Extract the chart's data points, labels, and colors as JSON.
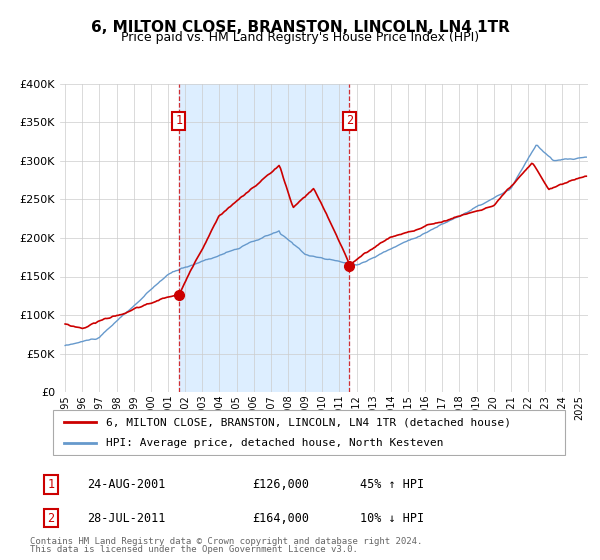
{
  "title": "6, MILTON CLOSE, BRANSTON, LINCOLN, LN4 1TR",
  "subtitle": "Price paid vs. HM Land Registry's House Price Index (HPI)",
  "sale1_label": "24-AUG-2001",
  "sale1_price": 126000,
  "sale1_price_str": "£126,000",
  "sale1_pct": "45% ↑ HPI",
  "sale1_x": 2001.6389,
  "sale2_label": "28-JUL-2011",
  "sale2_price": 164000,
  "sale2_price_str": "£164,000",
  "sale2_pct": "10% ↓ HPI",
  "sale2_x": 2011.5694,
  "property_line_color": "#cc0000",
  "hpi_line_color": "#6699cc",
  "shaded_region_color": "#ddeeff",
  "vline_color": "#cc0000",
  "legend_text_property": "6, MILTON CLOSE, BRANSTON, LINCOLN, LN4 1TR (detached house)",
  "legend_text_hpi": "HPI: Average price, detached house, North Kesteven",
  "footer1": "Contains HM Land Registry data © Crown copyright and database right 2024.",
  "footer2": "This data is licensed under the Open Government Licence v3.0.",
  "ylim": [
    0,
    400000
  ],
  "yticks": [
    0,
    50000,
    100000,
    150000,
    200000,
    250000,
    300000,
    350000,
    400000
  ],
  "ytick_labels": [
    "£0",
    "£50K",
    "£100K",
    "£150K",
    "£200K",
    "£250K",
    "£300K",
    "£350K",
    "£400K"
  ],
  "x_start": 1994.7,
  "x_end": 2025.5,
  "xticks": [
    1995,
    1996,
    1997,
    1998,
    1999,
    2000,
    2001,
    2002,
    2003,
    2004,
    2005,
    2006,
    2007,
    2008,
    2009,
    2010,
    2011,
    2012,
    2013,
    2014,
    2015,
    2016,
    2017,
    2018,
    2019,
    2020,
    2021,
    2022,
    2023,
    2024,
    2025
  ]
}
